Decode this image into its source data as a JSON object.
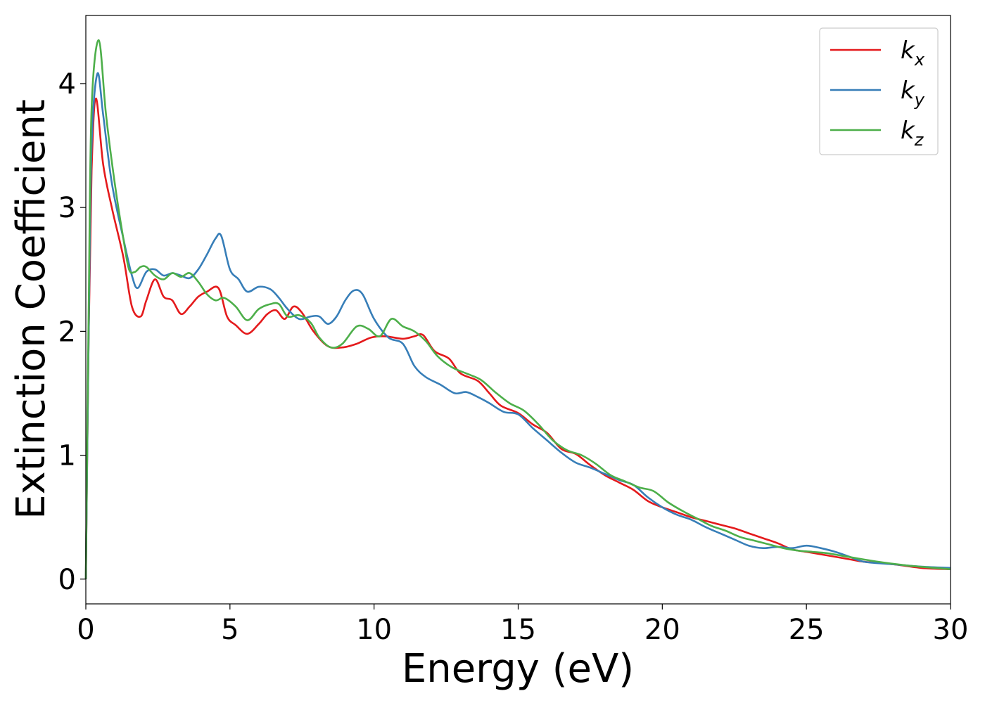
{
  "chart_data": {
    "type": "line",
    "xlabel": "Energy (eV)",
    "ylabel": "Extinction Coefficient",
    "xlim": [
      0,
      30
    ],
    "ylim": [
      -0.2,
      4.55
    ],
    "xticks": [
      "0",
      "5",
      "10",
      "15",
      "20",
      "25",
      "30"
    ],
    "yticks": [
      "0",
      "1",
      "2",
      "3",
      "4"
    ],
    "grid": false,
    "legend_position": "top-right",
    "series": [
      {
        "name": "k",
        "subscript": "x",
        "color": "#e41a1c",
        "x": [
          0,
          0.1,
          0.2,
          0.35,
          0.6,
          0.9,
          1.3,
          1.6,
          1.9,
          2.1,
          2.4,
          2.7,
          3.0,
          3.3,
          3.6,
          3.9,
          4.2,
          4.6,
          4.9,
          5.2,
          5.6,
          6.0,
          6.3,
          6.6,
          6.9,
          7.2,
          7.5,
          7.9,
          8.4,
          8.9,
          9.4,
          9.9,
          10.4,
          11.0,
          11.4,
          11.7,
          12.1,
          12.6,
          13.0,
          13.6,
          14.0,
          14.4,
          15.0,
          15.5,
          16.0,
          16.5,
          17.0,
          17.5,
          18.0,
          18.5,
          19.0,
          19.5,
          20.0,
          20.5,
          21.0,
          21.5,
          22.0,
          22.5,
          23.0,
          23.5,
          24.0,
          24.5,
          25.0,
          25.5,
          26.0,
          26.5,
          27.0,
          28.0,
          29.0,
          30.0
        ],
        "values": [
          0,
          2.0,
          3.3,
          3.88,
          3.35,
          3.0,
          2.6,
          2.2,
          2.12,
          2.25,
          2.42,
          2.28,
          2.25,
          2.14,
          2.2,
          2.28,
          2.32,
          2.35,
          2.12,
          2.05,
          1.98,
          2.06,
          2.14,
          2.17,
          2.1,
          2.2,
          2.15,
          2.0,
          1.88,
          1.87,
          1.9,
          1.95,
          1.96,
          1.94,
          1.96,
          1.97,
          1.84,
          1.78,
          1.66,
          1.6,
          1.5,
          1.4,
          1.34,
          1.25,
          1.18,
          1.05,
          1.01,
          0.92,
          0.84,
          0.78,
          0.72,
          0.63,
          0.58,
          0.54,
          0.5,
          0.47,
          0.44,
          0.41,
          0.37,
          0.33,
          0.29,
          0.24,
          0.22,
          0.2,
          0.18,
          0.16,
          0.14,
          0.12,
          0.09,
          0.08
        ]
      },
      {
        "name": "k",
        "subscript": "y",
        "color": "#377eb8",
        "x": [
          0,
          0.1,
          0.2,
          0.4,
          0.6,
          0.9,
          1.3,
          1.6,
          1.8,
          2.1,
          2.4,
          2.7,
          3.0,
          3.3,
          3.6,
          3.9,
          4.2,
          4.5,
          4.7,
          5.0,
          5.3,
          5.6,
          6.0,
          6.4,
          6.7,
          7.0,
          7.4,
          7.8,
          8.1,
          8.4,
          8.7,
          9.0,
          9.3,
          9.6,
          10.0,
          10.5,
          11.0,
          11.4,
          11.8,
          12.3,
          12.8,
          13.2,
          13.6,
          14.0,
          14.5,
          15.0,
          15.5,
          16.0,
          16.5,
          17.0,
          17.5,
          18.0,
          18.5,
          19.0,
          19.5,
          20.0,
          20.5,
          21.0,
          21.5,
          22.0,
          22.5,
          23.0,
          23.5,
          24.0,
          24.5,
          25.0,
          25.5,
          26.0,
          26.5,
          27.0,
          28.0,
          29.0,
          30.0
        ],
        "values": [
          0,
          2.0,
          3.5,
          4.08,
          3.75,
          3.2,
          2.75,
          2.45,
          2.35,
          2.48,
          2.5,
          2.45,
          2.47,
          2.45,
          2.43,
          2.5,
          2.62,
          2.75,
          2.77,
          2.5,
          2.42,
          2.32,
          2.36,
          2.34,
          2.27,
          2.18,
          2.1,
          2.12,
          2.12,
          2.06,
          2.12,
          2.25,
          2.33,
          2.3,
          2.1,
          1.95,
          1.9,
          1.72,
          1.63,
          1.57,
          1.5,
          1.51,
          1.47,
          1.42,
          1.35,
          1.33,
          1.22,
          1.12,
          1.02,
          0.94,
          0.9,
          0.85,
          0.8,
          0.76,
          0.66,
          0.58,
          0.52,
          0.48,
          0.42,
          0.37,
          0.32,
          0.27,
          0.25,
          0.26,
          0.25,
          0.27,
          0.25,
          0.22,
          0.18,
          0.14,
          0.12,
          0.1,
          0.09
        ]
      },
      {
        "name": "k",
        "subscript": "z",
        "color": "#4daf4a",
        "x": [
          0,
          0.1,
          0.2,
          0.45,
          0.7,
          1.0,
          1.3,
          1.5,
          1.7,
          1.9,
          2.1,
          2.4,
          2.7,
          3.0,
          3.3,
          3.6,
          3.9,
          4.2,
          4.5,
          4.8,
          5.2,
          5.6,
          6.0,
          6.4,
          6.7,
          7.0,
          7.4,
          7.8,
          8.1,
          8.5,
          8.9,
          9.4,
          9.8,
          10.2,
          10.6,
          11.0,
          11.4,
          11.8,
          12.2,
          12.7,
          13.2,
          13.7,
          14.2,
          14.7,
          15.2,
          15.7,
          16.2,
          16.7,
          17.2,
          17.7,
          18.2,
          18.7,
          19.2,
          19.7,
          20.2,
          20.7,
          21.2,
          21.7,
          22.2,
          22.7,
          23.2,
          23.7,
          24.2,
          24.7,
          25.2,
          25.7,
          26.2,
          26.7,
          27.5,
          28.5,
          30.0
        ],
        "values": [
          0,
          2.2,
          3.8,
          4.35,
          3.75,
          3.2,
          2.75,
          2.5,
          2.48,
          2.52,
          2.52,
          2.45,
          2.42,
          2.47,
          2.44,
          2.47,
          2.4,
          2.3,
          2.25,
          2.27,
          2.2,
          2.09,
          2.18,
          2.22,
          2.22,
          2.12,
          2.13,
          2.07,
          1.95,
          1.87,
          1.9,
          2.04,
          2.02,
          1.96,
          2.1,
          2.04,
          2.0,
          1.92,
          1.8,
          1.71,
          1.66,
          1.61,
          1.51,
          1.42,
          1.36,
          1.25,
          1.12,
          1.04,
          1.0,
          0.93,
          0.84,
          0.79,
          0.74,
          0.71,
          0.62,
          0.55,
          0.49,
          0.43,
          0.39,
          0.34,
          0.31,
          0.28,
          0.25,
          0.23,
          0.22,
          0.21,
          0.19,
          0.17,
          0.14,
          0.11,
          0.08
        ]
      }
    ]
  }
}
